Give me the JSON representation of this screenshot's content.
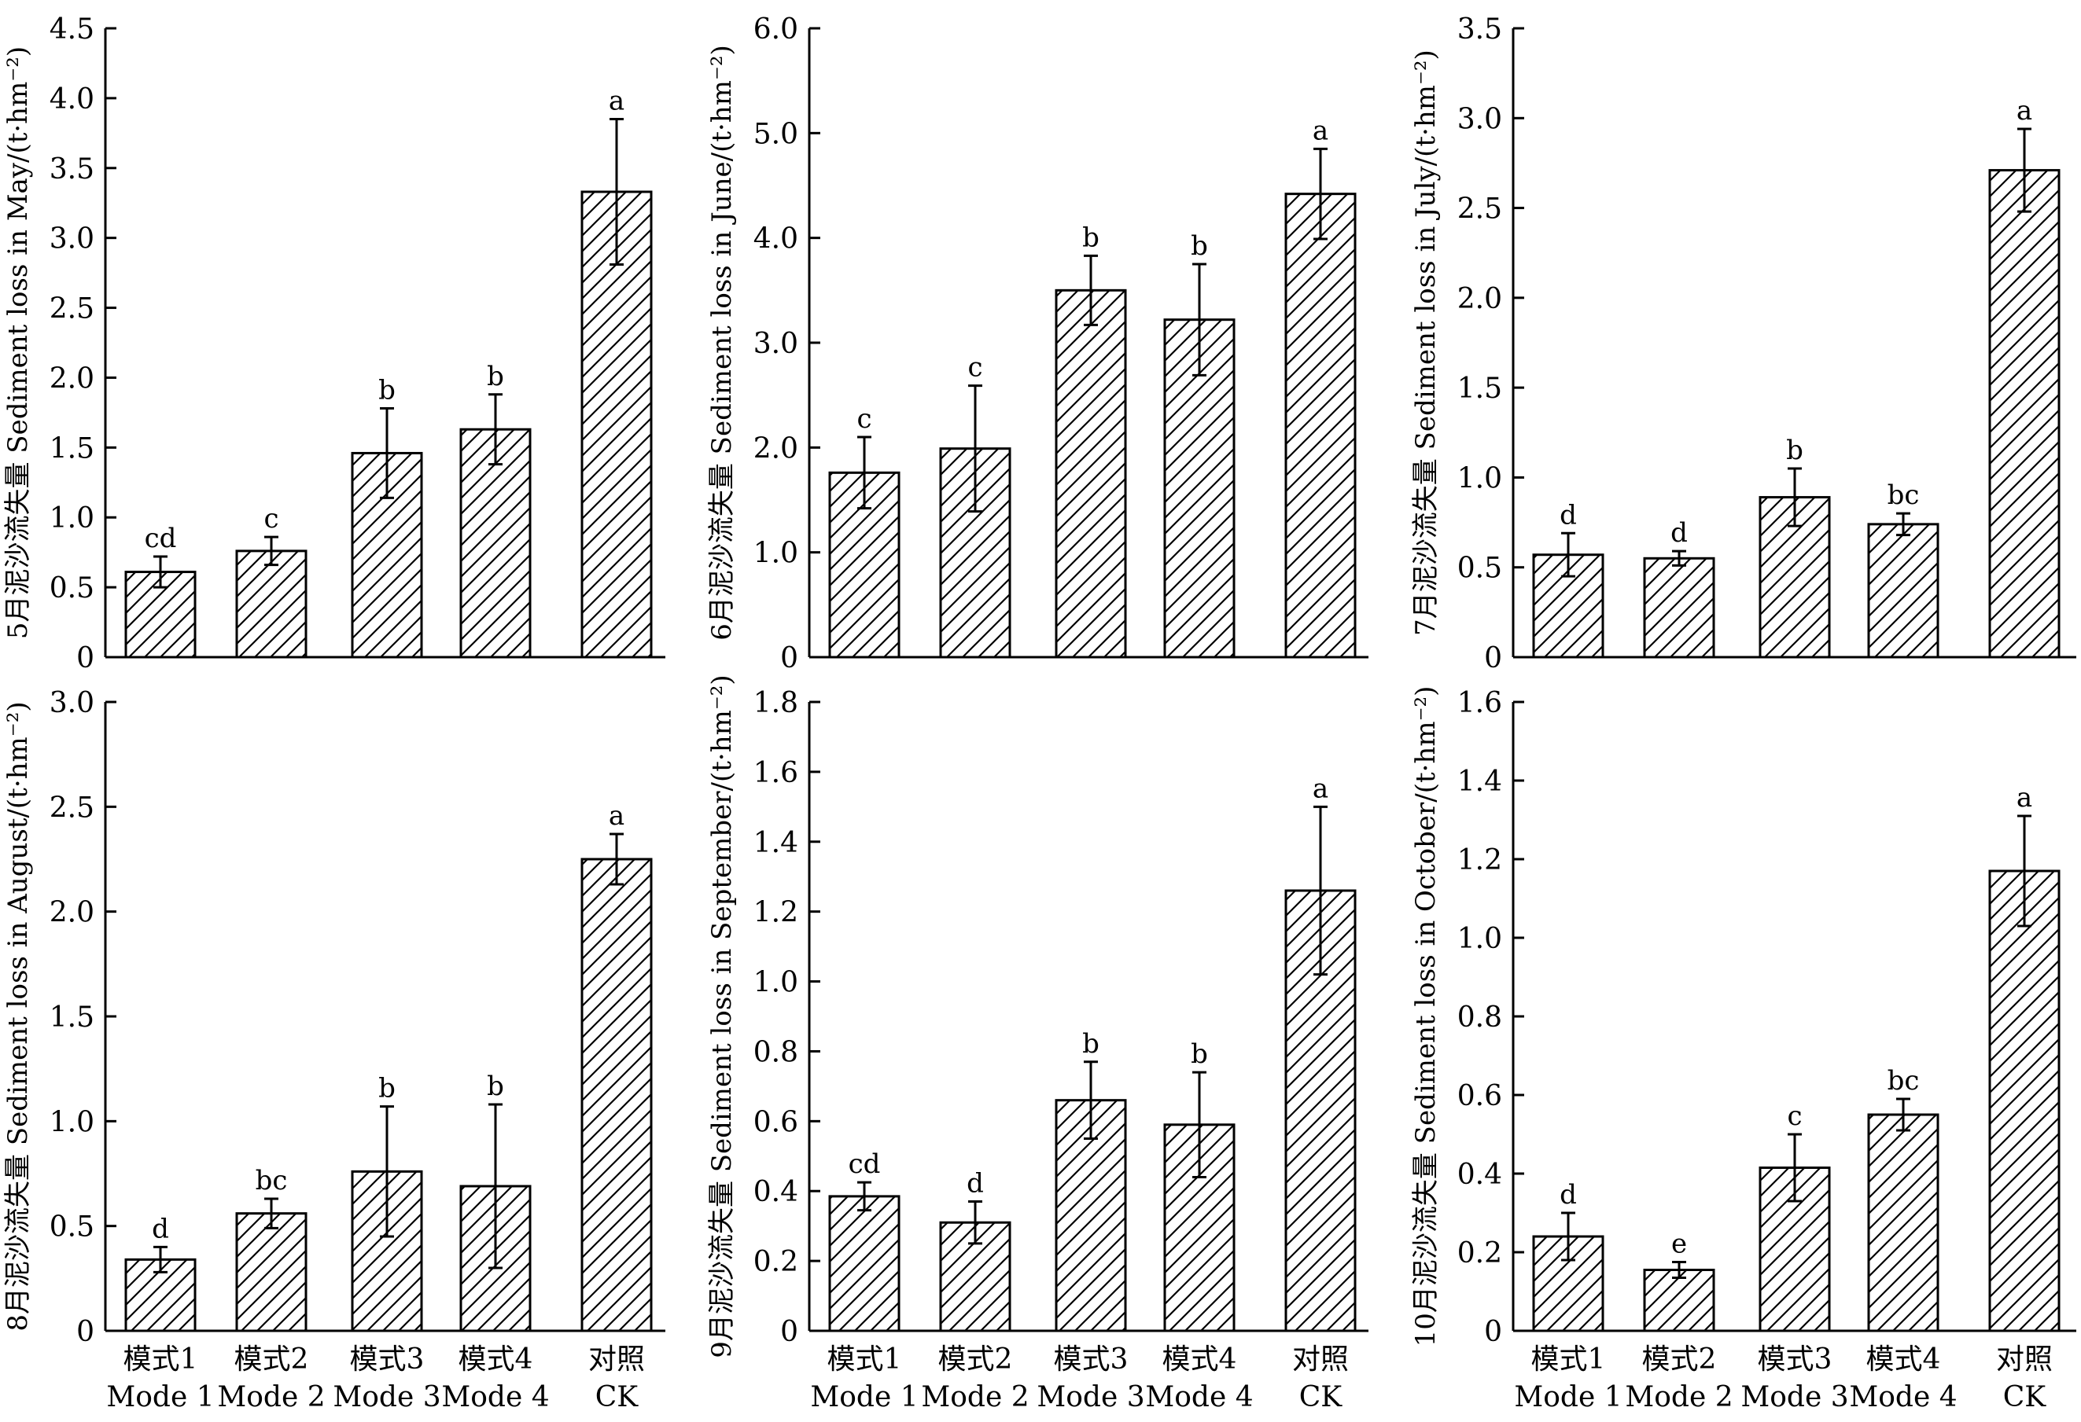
{
  "categories_cn": [
    "模式1",
    "模式2",
    "模式3",
    "模式4",
    "对照"
  ],
  "categories_en": [
    "Mode 1",
    "Mode 2",
    "Mode 3",
    "Mode 4",
    "CK"
  ],
  "colors": {
    "bar_fill": "#ffffff",
    "bar_stroke": "#000000",
    "hatch": "#000000"
  },
  "chart_data": [
    {
      "type": "bar",
      "ylabel": "5月泥沙流失量 Sediment loss in May/(t·hm⁻²)",
      "ylim": [
        0,
        4.5
      ],
      "yticks": [
        "0",
        "0.5",
        "1.0",
        "1.5",
        "2.0",
        "2.5",
        "3.0",
        "3.5",
        "4.0",
        "4.5"
      ],
      "values": [
        0.61,
        0.76,
        1.46,
        1.63,
        3.33
      ],
      "errors": [
        0.11,
        0.1,
        0.32,
        0.25,
        0.52
      ],
      "letters": [
        "cd",
        "c",
        "b",
        "b",
        "a"
      ],
      "show_xlabels": false
    },
    {
      "type": "bar",
      "ylabel": "6月泥沙流失量 Sediment loss in June/(t·hm⁻²)",
      "ylim": [
        0,
        6.0
      ],
      "yticks": [
        "0",
        "1.0",
        "2.0",
        "3.0",
        "4.0",
        "5.0",
        "6.0"
      ],
      "values": [
        1.76,
        1.99,
        3.5,
        3.22,
        4.42
      ],
      "errors": [
        0.34,
        0.6,
        0.33,
        0.53,
        0.43
      ],
      "letters": [
        "c",
        "c",
        "b",
        "b",
        "a"
      ],
      "show_xlabels": false
    },
    {
      "type": "bar",
      "ylabel": "7月泥沙流失量 Sediment loss in July/(t·hm⁻²)",
      "ylim": [
        0,
        3.5
      ],
      "yticks": [
        "0",
        "0.5",
        "1.0",
        "1.5",
        "2.0",
        "2.5",
        "3.0",
        "3.5"
      ],
      "values": [
        0.57,
        0.55,
        0.89,
        0.74,
        2.71
      ],
      "errors": [
        0.12,
        0.04,
        0.16,
        0.06,
        0.23
      ],
      "letters": [
        "d",
        "d",
        "b",
        "bc",
        "a"
      ],
      "show_xlabels": false
    },
    {
      "type": "bar",
      "ylabel": "8月泥沙流失量 Sediment loss in August/(t·hm⁻²)",
      "ylim": [
        0,
        3.0
      ],
      "yticks": [
        "0",
        "0.5",
        "1.0",
        "1.5",
        "2.0",
        "2.5",
        "3.0"
      ],
      "values": [
        0.34,
        0.56,
        0.76,
        0.69,
        2.25
      ],
      "errors": [
        0.06,
        0.07,
        0.31,
        0.39,
        0.12
      ],
      "letters": [
        "d",
        "bc",
        "b",
        "b",
        "a"
      ],
      "show_xlabels": true
    },
    {
      "type": "bar",
      "ylabel": "9月泥沙流失量 Sediment loss in September/(t·hm⁻²)",
      "ylim": [
        0,
        1.8
      ],
      "yticks": [
        "0",
        "0.2",
        "0.4",
        "0.6",
        "0.8",
        "1.0",
        "1.2",
        "1.4",
        "1.6",
        "1.8"
      ],
      "values": [
        0.385,
        0.31,
        0.66,
        0.59,
        1.26
      ],
      "errors": [
        0.04,
        0.06,
        0.11,
        0.15,
        0.24
      ],
      "letters": [
        "cd",
        "d",
        "b",
        "b",
        "a"
      ],
      "show_xlabels": true
    },
    {
      "type": "bar",
      "ylabel": "10月泥沙流失量 Sediment loss in October/(t·hm⁻²)",
      "ylim": [
        0,
        1.6
      ],
      "yticks": [
        "0",
        "0.2",
        "0.4",
        "0.6",
        "0.8",
        "1.0",
        "1.2",
        "1.4",
        "1.6"
      ],
      "values": [
        0.24,
        0.155,
        0.415,
        0.55,
        1.17
      ],
      "errors": [
        0.06,
        0.02,
        0.085,
        0.04,
        0.14
      ],
      "letters": [
        "d",
        "e",
        "c",
        "bc",
        "a"
      ],
      "show_xlabels": true
    }
  ]
}
